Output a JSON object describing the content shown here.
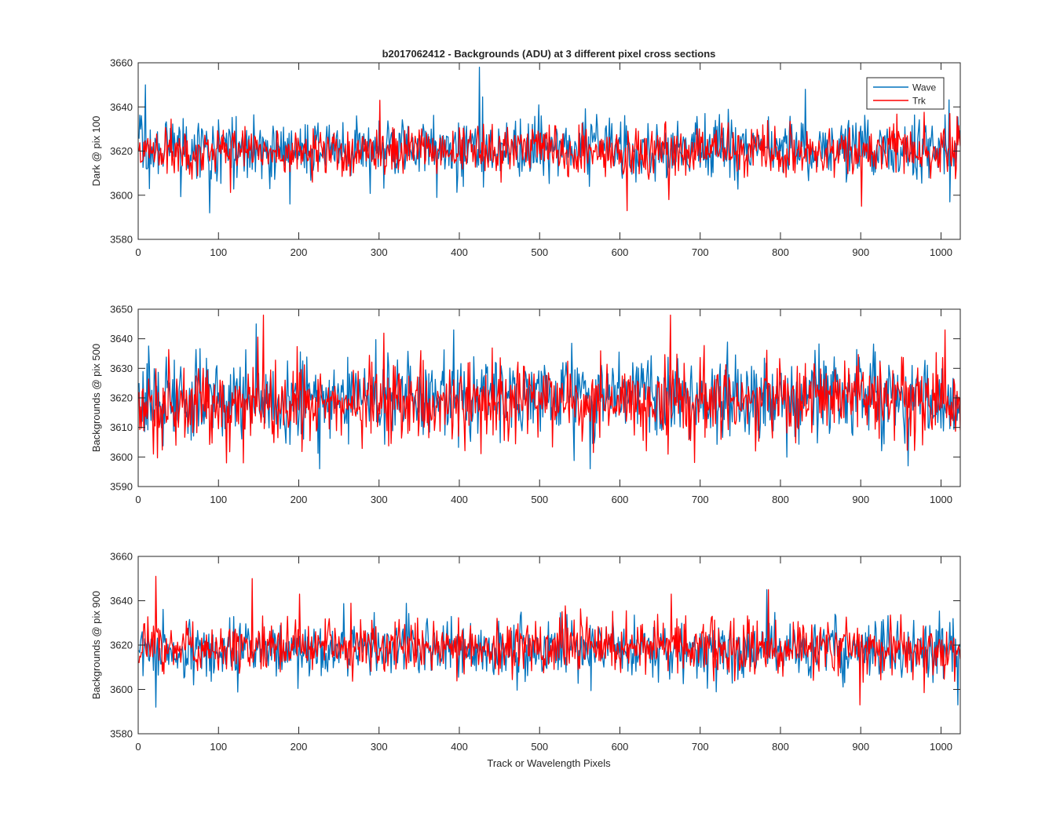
{
  "figure": {
    "title": "b2017062412 - Backgrounds (ADU) at 3 different pixel cross sections",
    "xlabel": "Track or Wavelength Pixels"
  },
  "legend": {
    "placement": "top-right of first panel",
    "entries": [
      {
        "name": "Wave",
        "color": "#0072BD"
      },
      {
        "name": "Trk",
        "color": "#FF0000"
      }
    ]
  },
  "chart_data": [
    {
      "type": "line",
      "title": "b2017062412 - Backgrounds (ADU) at 3 different pixel cross sections",
      "xlabel": "",
      "ylabel": "Dark @ pix 100",
      "xlim": [
        0,
        1024
      ],
      "ylim": [
        3580,
        3660
      ],
      "xticks": [
        0,
        100,
        200,
        300,
        400,
        500,
        600,
        700,
        800,
        900,
        1000
      ],
      "yticks": [
        3580,
        3600,
        3620,
        3640,
        3660
      ],
      "legend": "top-right",
      "grid": false,
      "series": [
        {
          "name": "Wave",
          "color": "#0072BD",
          "n_points": 1024,
          "mean": 3621,
          "std": 7,
          "spikes": [
            [
              3,
              3636
            ],
            [
              8,
              3650
            ],
            [
              13,
              3603
            ],
            [
              88,
              3592
            ],
            [
              188,
              3596
            ],
            [
              371,
              3599
            ],
            [
              424,
              3658
            ],
            [
              561,
              3604
            ],
            [
              830,
              3648
            ],
            [
              1010,
              3597
            ]
          ]
        },
        {
          "name": "Trk",
          "color": "#FF0000",
          "n_points": 1024,
          "mean": 3620,
          "std": 5.5,
          "spikes": [
            [
              300,
              3643
            ],
            [
              608,
              3593
            ],
            [
              660,
              3598
            ],
            [
              900,
              3595
            ],
            [
              1010,
              3637
            ]
          ]
        }
      ]
    },
    {
      "type": "line",
      "title": "",
      "xlabel": "",
      "ylabel": "Backgrounds @ pix 500",
      "xlim": [
        0,
        1024
      ],
      "ylim": [
        3590,
        3650
      ],
      "xticks": [
        0,
        100,
        200,
        300,
        400,
        500,
        600,
        700,
        800,
        900,
        1000
      ],
      "yticks": [
        3590,
        3600,
        3610,
        3620,
        3630,
        3640,
        3650
      ],
      "grid": false,
      "series": [
        {
          "name": "Wave",
          "color": "#0072BD",
          "n_points": 1024,
          "mean": 3620,
          "std": 7,
          "spikes": [
            [
              146,
              3645
            ],
            [
              225,
              3596
            ],
            [
              392,
              3643
            ],
            [
              562,
              3596
            ],
            [
              958,
              3597
            ]
          ]
        },
        {
          "name": "Trk",
          "color": "#FF0000",
          "n_points": 1024,
          "mean": 3619,
          "std": 6.5,
          "spikes": [
            [
              18,
              3601
            ],
            [
              109,
              3598
            ],
            [
              130,
              3598
            ],
            [
              155,
              3648
            ],
            [
              662,
              3648
            ],
            [
              1004,
              3643
            ]
          ]
        }
      ]
    },
    {
      "type": "line",
      "title": "",
      "xlabel": "Track or Wavelength Pixels",
      "ylabel": "Backgrounds @ pix 900",
      "xlim": [
        0,
        1024
      ],
      "ylim": [
        3580,
        3660
      ],
      "xticks": [
        0,
        100,
        200,
        300,
        400,
        500,
        600,
        700,
        800,
        900,
        1000
      ],
      "yticks": [
        3580,
        3600,
        3620,
        3640,
        3660
      ],
      "grid": false,
      "series": [
        {
          "name": "Wave",
          "color": "#0072BD",
          "n_points": 1024,
          "mean": 3618,
          "std": 6.5,
          "spikes": [
            [
              21,
              3592
            ],
            [
              782,
              3645
            ],
            [
              1020,
              3593
            ]
          ]
        },
        {
          "name": "Trk",
          "color": "#FF0000",
          "n_points": 1024,
          "mean": 3619,
          "std": 6,
          "spikes": [
            [
              21,
              3651
            ],
            [
              141,
              3650
            ],
            [
              200,
              3643
            ],
            [
              663,
              3643
            ],
            [
              784,
              3645
            ],
            [
              898,
              3593
            ]
          ]
        }
      ]
    }
  ]
}
